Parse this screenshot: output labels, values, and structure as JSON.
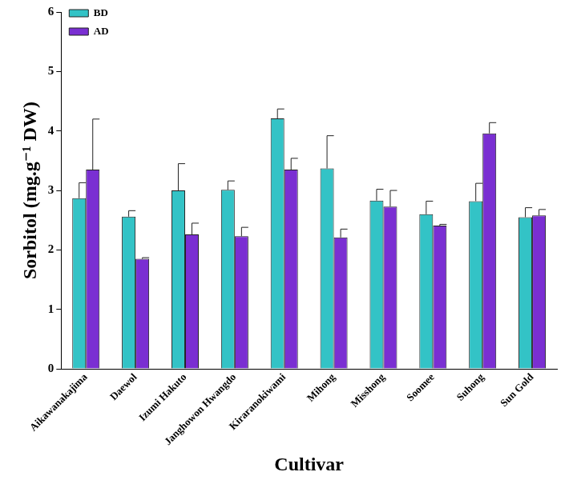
{
  "chart_data": {
    "type": "bar",
    "x_label": "Cultivar",
    "y_label": "Sorbitol (mg.g⁻¹ DW)",
    "categories": [
      "Aikawanakajima",
      "Daewol",
      "Izumi Hakuto",
      "Janghowon Hwangdo",
      "Kiraranokiwami",
      "Mihong",
      "Misshong",
      "Soomee",
      "Suhong",
      "Sun Gold"
    ],
    "series": [
      {
        "name": "BD",
        "color": "#33c3c6",
        "values": [
          2.87,
          2.56,
          3.0,
          3.01,
          4.21,
          3.37,
          2.83,
          2.6,
          2.82,
          2.55
        ],
        "errors": [
          0.26,
          0.1,
          0.45,
          0.15,
          0.16,
          0.55,
          0.19,
          0.22,
          0.3,
          0.16
        ]
      },
      {
        "name": "AD",
        "color": "#7a2fd2",
        "values": [
          3.35,
          1.85,
          2.26,
          2.23,
          3.35,
          2.21,
          2.73,
          2.41,
          3.96,
          2.58
        ],
        "errors": [
          0.85,
          0.02,
          0.19,
          0.15,
          0.19,
          0.14,
          0.27,
          0.02,
          0.18,
          0.1
        ]
      }
    ],
    "ylim": [
      0,
      6
    ],
    "yticks": [
      0,
      1,
      2,
      3,
      4,
      5,
      6
    ],
    "grid": false,
    "legend": "upper left"
  }
}
